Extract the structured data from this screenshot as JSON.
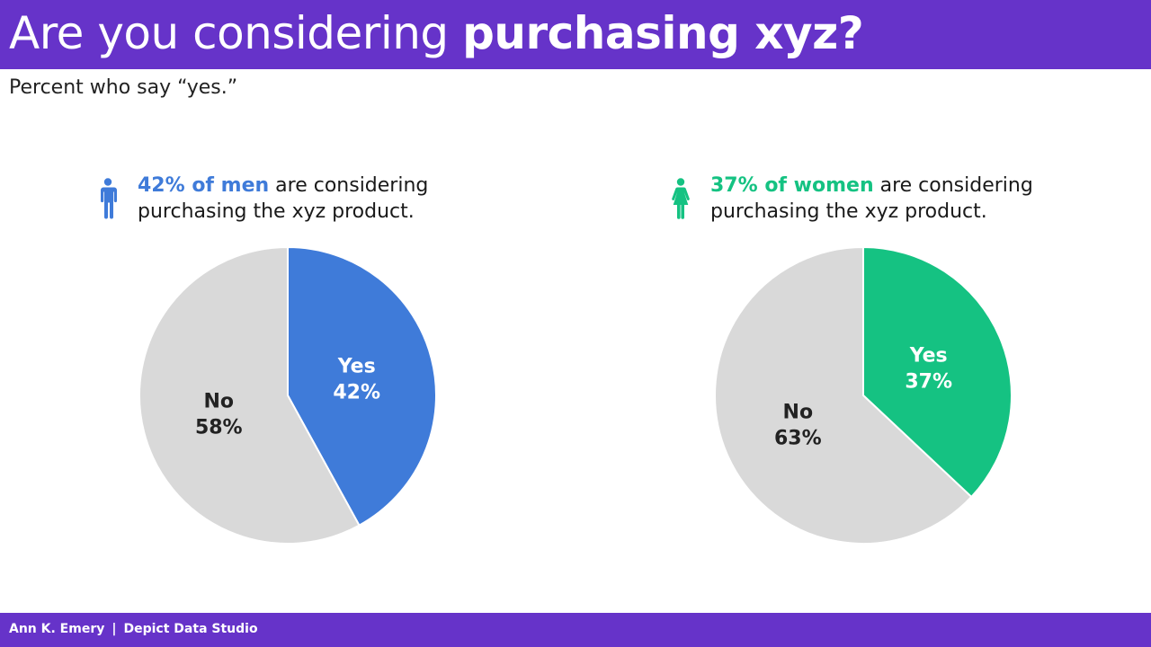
{
  "header": {
    "title_light": "Are you considering ",
    "title_bold": "purchasing xyz?",
    "subtitle": "Percent who say “yes.”"
  },
  "colors": {
    "brand": "#6633c9",
    "men": "#3f7bd9",
    "women": "#15c282",
    "no": "#d9d9d9"
  },
  "panels": [
    {
      "icon": "man-icon",
      "highlight": "42% of men",
      "caption_rest": " are considering",
      "caption_line2": "purchasing the xyz product."
    },
    {
      "icon": "woman-icon",
      "highlight": "37% of women",
      "caption_rest": " are considering",
      "caption_line2": "purchasing the xyz product."
    }
  ],
  "chart_data": [
    {
      "type": "pie",
      "title": "42% of men are considering purchasing the xyz product.",
      "series": [
        {
          "name": "Men",
          "values": [
            42,
            58
          ]
        }
      ],
      "categories": [
        "Yes",
        "No"
      ],
      "labels": [
        [
          "Yes",
          "42%"
        ],
        [
          "No",
          "58%"
        ]
      ],
      "colors": [
        "#3f7bd9",
        "#d9d9d9"
      ],
      "label_colors": [
        "#ffffff",
        "#222222"
      ]
    },
    {
      "type": "pie",
      "title": "37% of women are considering purchasing the xyz product.",
      "series": [
        {
          "name": "Women",
          "values": [
            37,
            63
          ]
        }
      ],
      "categories": [
        "Yes",
        "No"
      ],
      "labels": [
        [
          "Yes",
          "37%"
        ],
        [
          "No",
          "63%"
        ]
      ],
      "colors": [
        "#15c282",
        "#d9d9d9"
      ],
      "label_colors": [
        "#ffffff",
        "#222222"
      ]
    }
  ],
  "footer": {
    "author": "Ann K. Emery",
    "separator": "|",
    "studio": "Depict Data Studio"
  }
}
